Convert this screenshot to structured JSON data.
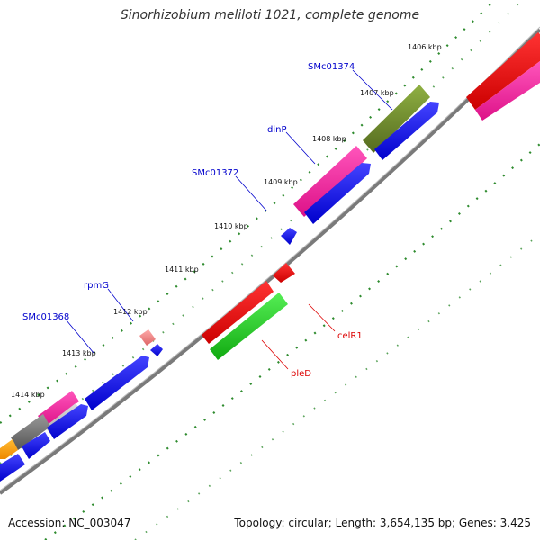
{
  "title": "Sinorhizobium meliloti 1021, complete genome",
  "footer": {
    "accession": "Accession: NC_003047",
    "summary": "Topology: circular; Length: 3,654,135 bp; Genes: 3,425"
  },
  "colors": {
    "backbone": "#7a7a7a",
    "ticks": "#2e8b2e",
    "blue": "#0000ee",
    "red": "#ee0000",
    "magenta": "#ee2299",
    "green": "#22cc22",
    "olive": "#6b8e23",
    "gray": "#707070",
    "orange": "#ff9900",
    "pink": "#f08080",
    "label_blue": "#0000cc",
    "label_red": "#dd0000"
  },
  "ticks": [
    "1406 kbp",
    "1407 kbp",
    "1408 kbp",
    "1409 kbp",
    "1410 kbp",
    "1411 kbp",
    "1412 kbp",
    "1413 kbp",
    "1414 kbp"
  ],
  "gene_labels": [
    {
      "name": "SMc01374",
      "color": "blue"
    },
    {
      "name": "dinP",
      "color": "blue"
    },
    {
      "name": "SMc01372",
      "color": "blue"
    },
    {
      "name": "rpmG",
      "color": "blue"
    },
    {
      "name": "SMc01368",
      "color": "blue"
    },
    {
      "name": "celR1",
      "color": "red"
    },
    {
      "name": "pleD",
      "color": "red"
    }
  ]
}
